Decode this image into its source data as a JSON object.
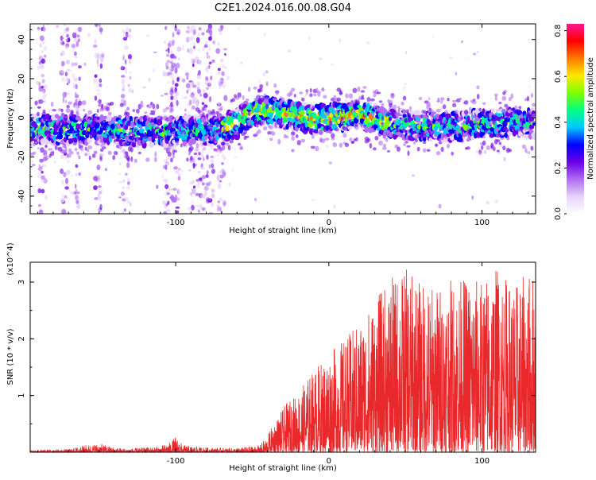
{
  "title": "C2E1.2024.016.00.08.G04",
  "colors": {
    "signal": "#e8282a",
    "colormap": [
      "#ffffff",
      "#e6d2fb",
      "#b06cf2",
      "#6a00e6",
      "#0000ff",
      "#00c8ff",
      "#00ff80",
      "#7fff00",
      "#ffe600",
      "#ff7a00",
      "#ff0000",
      "#ff1493"
    ]
  },
  "chart_data": [
    {
      "type": "heatmap",
      "xlabel": "Height of straight line (km)",
      "ylabel": "Frequency (Hz)",
      "xlim": [
        -195,
        135
      ],
      "ylim": [
        -49,
        48
      ],
      "xticks": [
        -100,
        0,
        100
      ],
      "yticks": [
        -40,
        -20,
        0,
        20,
        40
      ],
      "colorbar": {
        "label": "Normalized spectral amplitude",
        "range": [
          0.0,
          0.83
        ],
        "ticks": [
          "0.0",
          "0.2",
          "0.4",
          "0.6",
          "0.8"
        ]
      },
      "ridge": {
        "x": [
          -195,
          -170,
          -150,
          -130,
          -110,
          -90,
          -75,
          -60,
          -50,
          -40,
          -30,
          -20,
          -10,
          0,
          10,
          20,
          30,
          40,
          60,
          80,
          100,
          120,
          135
        ],
        "y": [
          -6,
          -6,
          -6,
          -7,
          -7,
          -7,
          -6,
          -3,
          3,
          4,
          2,
          1,
          -1,
          0,
          1,
          2,
          -1,
          -3,
          -4,
          -5,
          -3,
          -2,
          -3
        ]
      },
      "vertical_streak_x": [
        -187,
        -172,
        -165,
        -150,
        -132,
        -105,
        -100,
        -90,
        -84,
        -78,
        -70
      ]
    },
    {
      "type": "line",
      "xlabel": "Height of straight line (km)",
      "ylabel": "SNR (10 * v/v)",
      "y_multiplier": "(x10^4)",
      "xlim": [
        -195,
        135
      ],
      "ylim": [
        0,
        3.35
      ],
      "xticks": [
        -100,
        0,
        100
      ],
      "yticks": [
        1,
        2,
        3
      ],
      "envelope": {
        "x": [
          -195,
          -170,
          -160,
          -150,
          -140,
          -130,
          -110,
          -103,
          -100,
          -95,
          -80,
          -60,
          -45,
          -40,
          -35,
          -28,
          -20,
          -10,
          0,
          10,
          20,
          30,
          40,
          50,
          60,
          70,
          80,
          90,
          100,
          110,
          120,
          135
        ],
        "y": [
          0.04,
          0.05,
          0.12,
          0.15,
          0.08,
          0.06,
          0.1,
          0.18,
          0.28,
          0.12,
          0.08,
          0.07,
          0.12,
          0.3,
          0.55,
          0.85,
          1.05,
          1.45,
          1.75,
          2.0,
          2.3,
          2.7,
          3.05,
          3.25,
          3.0,
          2.95,
          3.05,
          3.1,
          3.05,
          3.3,
          2.95,
          3.25
        ]
      }
    }
  ]
}
